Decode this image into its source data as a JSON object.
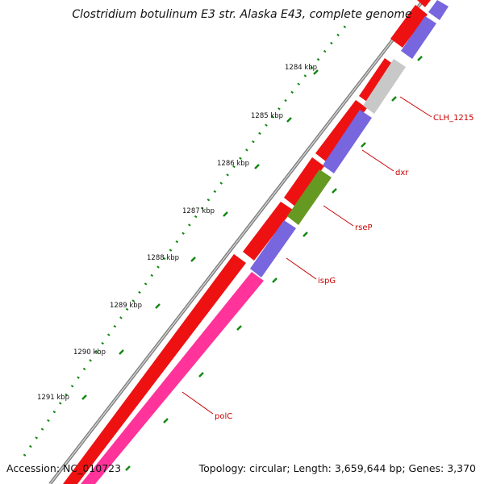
{
  "title": "Clostridium botulinum E3 str. Alaska E43, complete genome",
  "accession": "Accession: NC_010723",
  "summary": "Topology: circular; Length: 3,659,644 bp; Genes: 3,370",
  "colors": {
    "backbone": "#7a7a7a",
    "forward_gene": "#ee1111",
    "reverse_gene": "#7766dd",
    "unknown_gene": "#c8c8c8",
    "misc_gene": "#669922",
    "highlight_gene": "#ff3399",
    "label": "#cc0000",
    "tick": "#118811"
  },
  "ticks": [
    {
      "label": "1284 kbp"
    },
    {
      "label": "1285 kbp"
    },
    {
      "label": "1286 kbp"
    },
    {
      "label": "1287 kbp"
    },
    {
      "label": "1288 kbp"
    },
    {
      "label": "1289 kbp"
    },
    {
      "label": "1290 kbp"
    },
    {
      "label": "1291 kbp"
    }
  ],
  "genes": [
    {
      "name": "CLH_1215"
    },
    {
      "name": "dxr"
    },
    {
      "name": "rseP"
    },
    {
      "name": "ispG"
    },
    {
      "name": "polC"
    }
  ]
}
